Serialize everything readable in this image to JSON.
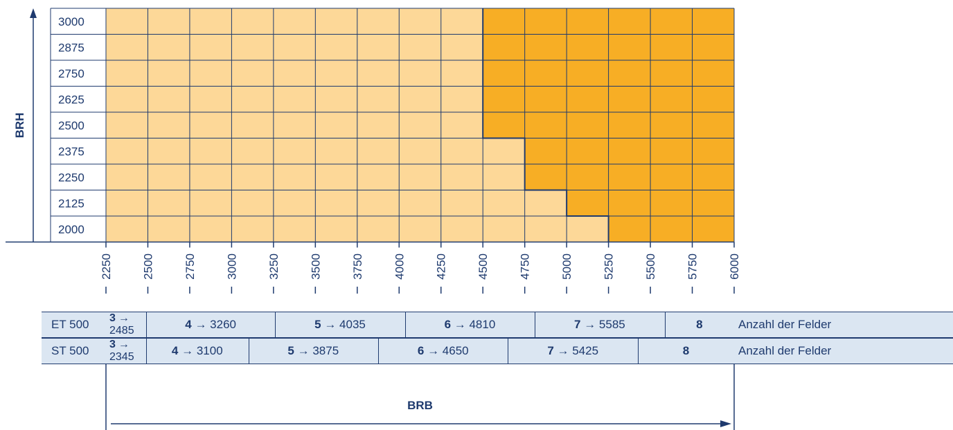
{
  "chart_data": {
    "type": "heatmap",
    "y_axis_label": "BRH",
    "x_axis_label": "BRB",
    "y_values": [
      3000,
      2875,
      2750,
      2625,
      2500,
      2375,
      2250,
      2125,
      2000
    ],
    "x_ticks": [
      2250,
      2500,
      2750,
      3000,
      3250,
      3500,
      3750,
      4000,
      4250,
      4500,
      4750,
      5000,
      5250,
      5500,
      5750,
      6000
    ],
    "colors": {
      "light": "#fdd898",
      "dark": "#f7ae25",
      "grid": "#1e3a6e"
    },
    "dark_region_start_brb_by_brh": [
      {
        "brh": 3000,
        "brb_from": 4500
      },
      {
        "brh": 2875,
        "brb_from": 4500
      },
      {
        "brh": 2750,
        "brb_from": 4500
      },
      {
        "brh": 2625,
        "brb_from": 4500
      },
      {
        "brh": 2500,
        "brb_from": 4500
      },
      {
        "brh": 2375,
        "brb_from": 4750
      },
      {
        "brh": 2250,
        "brb_from": 4750
      },
      {
        "brh": 2125,
        "brb_from": 5000
      },
      {
        "brh": 2000,
        "brb_from": 5250
      }
    ]
  },
  "table": {
    "rows": [
      {
        "label": "ET 500",
        "first": {
          "num": "3",
          "arrow": "→",
          "value": "2485"
        },
        "cells": [
          {
            "num": "4",
            "text": " → 3260",
            "brb_from": 2485,
            "brb_to": 3260
          },
          {
            "num": "5",
            "text": " → 4035",
            "brb_from": 3260,
            "brb_to": 4035
          },
          {
            "num": "6",
            "text": " → 4810",
            "brb_from": 4035,
            "brb_to": 4810
          },
          {
            "num": "7",
            "text": " → 5585",
            "brb_from": 4810,
            "brb_to": 5585
          },
          {
            "num": "8",
            "text": "",
            "brb_from": 5585,
            "brb_to": 6000
          }
        ],
        "note": "Anzahl der Felder"
      },
      {
        "label": "ST 500",
        "first": {
          "num": "3",
          "arrow": "→",
          "value": "2345"
        },
        "cells": [
          {
            "num": "4",
            "text": " → 3100",
            "brb_from": 2345,
            "brb_to": 3100
          },
          {
            "num": "5",
            "text": " → 3875",
            "brb_from": 3100,
            "brb_to": 3875
          },
          {
            "num": "6",
            "text": " → 4650",
            "brb_from": 3875,
            "brb_to": 4650
          },
          {
            "num": "7",
            "text": " → 5425",
            "brb_from": 4650,
            "brb_to": 5425
          },
          {
            "num": "8",
            "text": "",
            "brb_from": 5425,
            "brb_to": 6000
          }
        ],
        "note": "Anzahl der Felder"
      }
    ]
  }
}
